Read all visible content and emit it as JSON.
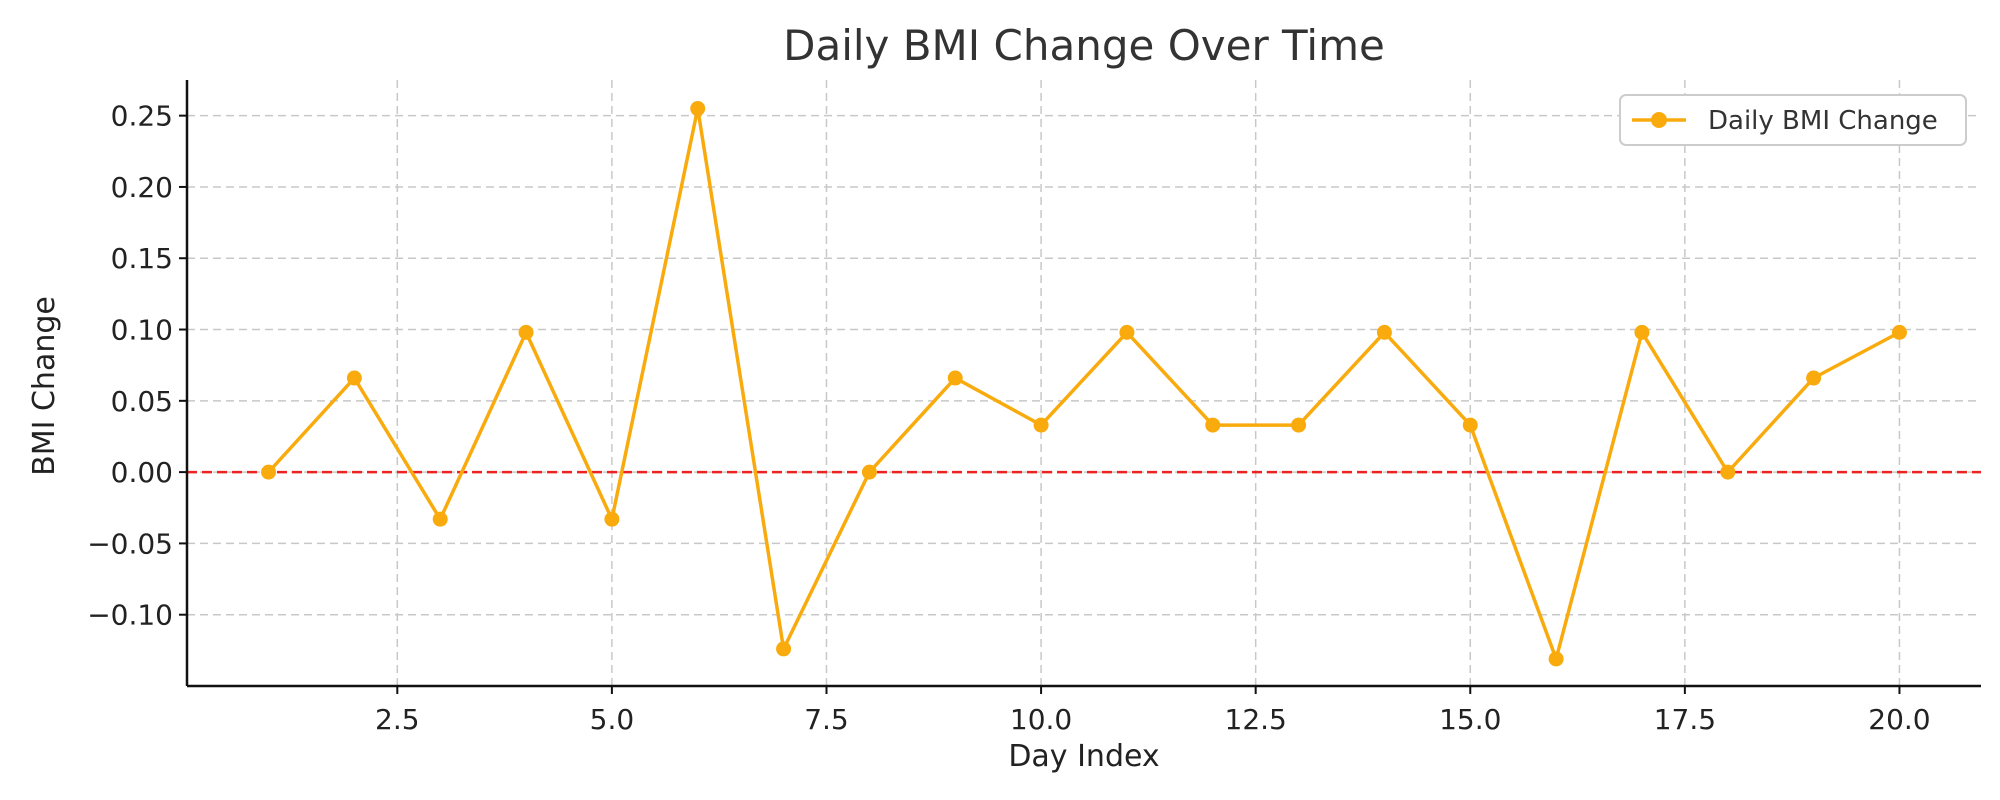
{
  "chart_data": {
    "type": "line",
    "title": "Daily BMI Change Over Time",
    "xlabel": "Day Index",
    "ylabel": "BMI Change",
    "xlim": [
      0.05,
      20.95
    ],
    "ylim": [
      -0.15,
      0.275
    ],
    "x_ticks": [
      2.5,
      5.0,
      7.5,
      10.0,
      12.5,
      15.0,
      17.5,
      20.0
    ],
    "x_tick_labels": [
      "2.5",
      "5.0",
      "7.5",
      "10.0",
      "12.5",
      "15.0",
      "17.5",
      "20.0"
    ],
    "y_ticks": [
      -0.1,
      -0.05,
      0.0,
      0.05,
      0.1,
      0.15,
      0.2,
      0.25
    ],
    "y_tick_labels": [
      "−0.10",
      "−0.05",
      "0.00",
      "0.05",
      "0.10",
      "0.15",
      "0.20",
      "0.25"
    ],
    "grid": true,
    "legend_position": "top-right",
    "series": [
      {
        "name": "Daily BMI Change",
        "color": "#F9AB0E",
        "marker": "circle",
        "x": [
          1,
          2,
          3,
          4,
          5,
          6,
          7,
          8,
          9,
          10,
          11,
          12,
          13,
          14,
          15,
          16,
          17,
          18,
          19,
          20
        ],
        "y": [
          0.0,
          0.066,
          -0.033,
          0.098,
          -0.033,
          0.255,
          -0.124,
          0.0,
          0.066,
          0.033,
          0.098,
          0.033,
          0.033,
          0.098,
          0.033,
          -0.131,
          0.098,
          0.0,
          0.066,
          0.098
        ]
      }
    ],
    "reference_lines": [
      {
        "axis": "y",
        "value": 0.0,
        "color": "#EE2222",
        "style": "dashed"
      }
    ]
  }
}
